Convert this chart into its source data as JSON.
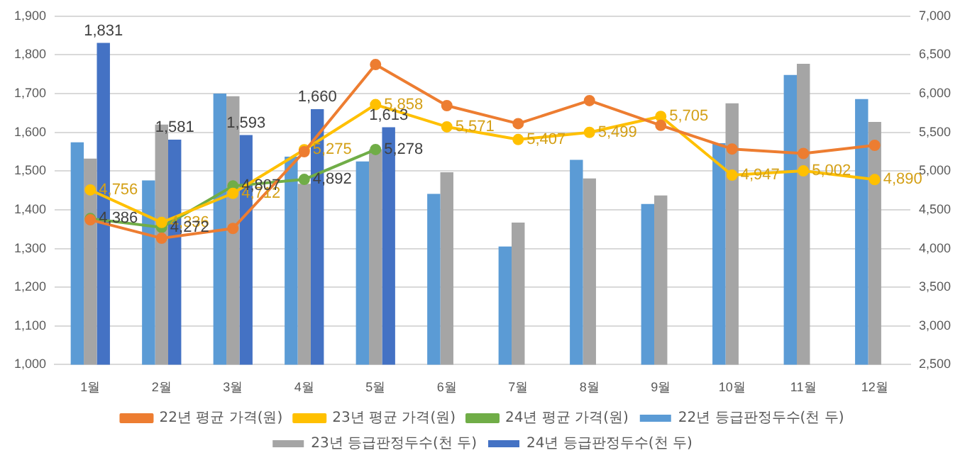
{
  "chart_data": {
    "type": "bar",
    "categories": [
      "1월",
      "2월",
      "3월",
      "4월",
      "5월",
      "6월",
      "7월",
      "8월",
      "9월",
      "10월",
      "11월",
      "12월"
    ],
    "series": [
      {
        "name": "22년 등급판정두수(천 두)",
        "color": "#5b9bd5",
        "values": [
          1574,
          1476,
          1700,
          1537,
          1525,
          1441,
          1305,
          1529,
          1415,
          1572,
          1748,
          1686
        ]
      },
      {
        "name": "23년 등급판정두수(천 두)",
        "color": "#a5a5a5",
        "values": [
          1532,
          1620,
          1693,
          1467,
          1556,
          1497,
          1367,
          1481,
          1437,
          1675,
          1777,
          1627
        ]
      },
      {
        "name": "24년 등급판정두수(천 두)",
        "color": "#4472c4",
        "values": [
          1831,
          1581,
          1593,
          1660,
          1613,
          null,
          null,
          null,
          null,
          null,
          null,
          null
        ],
        "value_labels": [
          "1,831",
          "1,581",
          "1,593",
          "1,660",
          "1,613",
          null,
          null,
          null,
          null,
          null,
          null,
          null
        ]
      },
      {
        "name": "22년 평균 가격(원)",
        "type": "line",
        "axis": "y2",
        "color": "#ed7d31",
        "values": [
          4370,
          4132,
          4259,
          5250,
          6375,
          5845,
          5612,
          5910,
          5590,
          5285,
          5227,
          5332
        ]
      },
      {
        "name": "23년 평균 가격(원)",
        "type": "line",
        "axis": "y2",
        "color": "#ffc000",
        "values": [
          4756,
          4336,
          4712,
          5275,
          5858,
          5571,
          5407,
          5499,
          5705,
          4947,
          5002,
          4890
        ],
        "value_labels": [
          "4,756",
          "4,336",
          "4,712",
          "5,275",
          "5,858",
          "5,571",
          "5,407",
          "5,499",
          "5,705",
          "4,947",
          "5,002",
          "4,890"
        ]
      },
      {
        "name": "24년 평균 가격(원)",
        "type": "line",
        "axis": "y2",
        "color": "#70ad47",
        "values": [
          4386,
          4272,
          4807,
          4892,
          5278,
          null,
          null,
          null,
          null,
          null,
          null,
          null
        ],
        "value_labels": [
          "4,386",
          "4,272",
          "4,807",
          "4,892",
          "5,278",
          null,
          null,
          null,
          null,
          null,
          null,
          null
        ]
      }
    ],
    "ylim": [
      1000,
      1900
    ],
    "yticks": [
      {
        "value": 1000,
        "label": "1,000"
      },
      {
        "value": 1100,
        "label": "1,100"
      },
      {
        "value": 1200,
        "label": "1,200"
      },
      {
        "value": 1300,
        "label": "1,300"
      },
      {
        "value": 1400,
        "label": "1,400"
      },
      {
        "value": 1500,
        "label": "1,500"
      },
      {
        "value": 1600,
        "label": "1,600"
      },
      {
        "value": 1700,
        "label": "1,700"
      },
      {
        "value": 1800,
        "label": "1,800"
      },
      {
        "value": 1900,
        "label": "1,900"
      }
    ],
    "y2lim": [
      2500,
      7000
    ],
    "y2ticks": [
      {
        "value": 2500,
        "label": "2,500"
      },
      {
        "value": 3000,
        "label": "3,000"
      },
      {
        "value": 3500,
        "label": "3,500"
      },
      {
        "value": 4000,
        "label": "4,000"
      },
      {
        "value": 4500,
        "label": "4,500"
      },
      {
        "value": 5000,
        "label": "5,000"
      },
      {
        "value": 5500,
        "label": "5,500"
      },
      {
        "value": 6000,
        "label": "6,000"
      },
      {
        "value": 6500,
        "label": "6,500"
      },
      {
        "value": 7000,
        "label": "7,000"
      }
    ],
    "grid": "y",
    "legend": "bottom",
    "marker": "circle",
    "line_style": "solid"
  }
}
